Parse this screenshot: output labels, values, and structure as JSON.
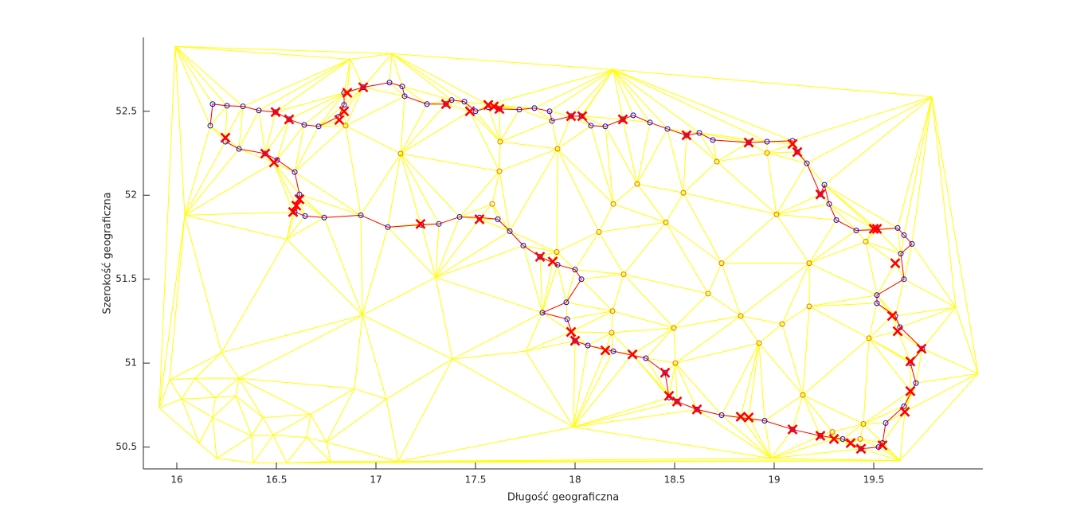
{
  "chart_data": {
    "type": "scatter",
    "xlabel": "Długość geograficzna",
    "ylabel": "Szerokość geograficzna",
    "xlim": [
      15.832,
      20.048
    ],
    "ylim": [
      50.37,
      52.94
    ],
    "xticks": [
      16,
      16.5,
      17,
      17.5,
      18,
      18.5,
      19,
      19.5
    ],
    "yticks": [
      50.5,
      51,
      51.5,
      52,
      52.5
    ],
    "triangulation": true,
    "mesh_color": "#ffff00",
    "series": [
      {
        "line_color": "#ff0000",
        "marker": "o",
        "marker_color": "#0000ff",
        "x": [
          16.168,
          16.18,
          16.252,
          16.332,
          16.412,
          16.496,
          16.564,
          16.64,
          16.712,
          16.812,
          16.84,
          16.84,
          16.936,
          17.068,
          17.132,
          17.144,
          17.256,
          17.352,
          17.38,
          17.444,
          17.5,
          17.564,
          17.62,
          17.72,
          17.796,
          17.872,
          17.884,
          17.98,
          18.032,
          18.08,
          18.152,
          18.24,
          18.292,
          18.376,
          18.464,
          18.56,
          18.624,
          18.692,
          18.872,
          18.964,
          19.092,
          19.116,
          19.164,
          19.232,
          19.252,
          19.276,
          19.312,
          19.412,
          19.516,
          19.62,
          19.652,
          19.692,
          19.636,
          19.652,
          19.516,
          19.516,
          19.608,
          19.632,
          19.744,
          19.684,
          19.712,
          19.652,
          19.56,
          19.544,
          19.524,
          19.436,
          19.344,
          19.232,
          19.092,
          18.952,
          18.736,
          18.612,
          18.512,
          18.472,
          18.452,
          18.356,
          18.192,
          18.064,
          18.0,
          17.96,
          17.836,
          17.956,
          18.032,
          18.0,
          17.912,
          17.824,
          17.74,
          17.672,
          17.612,
          17.52,
          17.42,
          17.316,
          17.228,
          17.06,
          16.924,
          16.74,
          16.644,
          16.592,
          16.616,
          16.592,
          16.504,
          16.444,
          16.312,
          16.244
        ],
        "y": [
          52.414,
          52.543,
          52.533,
          52.529,
          52.505,
          52.495,
          52.452,
          52.419,
          52.41,
          52.467,
          52.538,
          52.61,
          52.643,
          52.671,
          52.648,
          52.59,
          52.543,
          52.543,
          52.567,
          52.557,
          52.5,
          52.524,
          52.514,
          52.51,
          52.519,
          52.5,
          52.443,
          52.471,
          52.471,
          52.414,
          52.41,
          52.452,
          52.476,
          52.433,
          52.395,
          52.357,
          52.371,
          52.329,
          52.314,
          52.319,
          52.324,
          52.257,
          52.19,
          52.005,
          52.062,
          51.948,
          51.852,
          51.79,
          51.795,
          51.805,
          51.762,
          51.71,
          51.652,
          51.5,
          51.405,
          51.357,
          51.281,
          51.214,
          51.086,
          51.0,
          50.881,
          50.743,
          50.643,
          50.524,
          50.5,
          50.49,
          50.548,
          50.567,
          50.605,
          50.657,
          50.69,
          50.724,
          50.771,
          50.795,
          50.943,
          51.029,
          51.071,
          51.105,
          51.133,
          51.262,
          51.3,
          51.362,
          51.5,
          51.557,
          51.586,
          51.633,
          51.7,
          51.786,
          51.857,
          51.867,
          51.871,
          51.829,
          51.824,
          51.81,
          51.881,
          51.867,
          51.876,
          51.9,
          52.005,
          52.138,
          52.21,
          52.248,
          52.276,
          52.319
        ]
      },
      {
        "marker": "x",
        "marker_color": "#ff0000",
        "x": [
          16.496,
          16.564,
          16.816,
          16.84,
          16.856,
          16.936,
          17.352,
          17.472,
          17.564,
          17.592,
          17.62,
          17.98,
          18.036,
          18.24,
          18.56,
          18.872,
          19.092,
          19.116,
          19.232,
          19.5,
          19.516,
          19.608,
          19.592,
          19.62,
          19.74,
          19.684,
          19.684,
          19.656,
          19.544,
          19.436,
          19.384,
          19.3,
          19.232,
          19.092,
          18.872,
          18.832,
          18.612,
          18.512,
          18.472,
          18.452,
          18.288,
          18.152,
          18.0,
          17.98,
          17.888,
          17.824,
          17.52,
          17.224,
          16.616,
          16.6,
          16.584,
          16.244,
          16.444,
          16.488
        ],
        "y": [
          52.495,
          52.452,
          52.448,
          52.5,
          52.61,
          52.643,
          52.543,
          52.5,
          52.538,
          52.529,
          52.514,
          52.471,
          52.471,
          52.452,
          52.357,
          52.314,
          52.305,
          52.257,
          52.005,
          51.8,
          51.8,
          51.595,
          51.281,
          51.19,
          51.086,
          51.01,
          50.833,
          50.71,
          50.51,
          50.49,
          50.524,
          50.548,
          50.567,
          50.605,
          50.676,
          50.681,
          50.724,
          50.771,
          50.805,
          50.943,
          51.052,
          51.076,
          51.133,
          51.186,
          51.605,
          51.633,
          51.857,
          51.829,
          51.976,
          51.938,
          51.9,
          52.343,
          52.248,
          52.195
        ]
      },
      {
        "marker": "o",
        "marker_color": "#e07000",
        "x": [
          16.848,
          17.124,
          17.624,
          17.62,
          17.584,
          17.912,
          17.908,
          18.12,
          18.192,
          18.312,
          18.456,
          18.544,
          18.712,
          18.964,
          19.012,
          19.46,
          19.176,
          18.736,
          18.668,
          18.244,
          18.188,
          18.184,
          18.496,
          18.504,
          18.832,
          18.924,
          19.04,
          19.176,
          19.476,
          19.144,
          19.292,
          19.432,
          19.448
        ],
        "y": [
          52.414,
          52.248,
          52.319,
          52.143,
          51.948,
          52.276,
          51.662,
          51.781,
          51.948,
          52.067,
          51.838,
          52.014,
          52.2,
          52.252,
          51.886,
          51.724,
          51.595,
          51.595,
          51.414,
          51.529,
          51.31,
          51.181,
          51.21,
          51.0,
          51.281,
          51.119,
          51.233,
          51.338,
          51.148,
          50.81,
          50.59,
          50.548,
          50.638
        ]
      },
      {
        "marker": "none",
        "x": [
          15.992,
          19.792,
          20.024,
          15.912,
          16.04,
          15.964,
          16.2,
          16.384,
          16.552,
          16.772,
          17.112,
          17.992,
          18.984,
          19.632,
          16.224,
          16.192,
          16.18,
          16.092,
          16.312,
          16.432,
          16.672,
          16.652,
          16.752,
          16.892,
          17.052,
          16.552,
          17.3,
          17.752,
          17.384,
          16.296,
          16.024,
          16.112,
          16.376,
          16.484,
          18.192,
          17.08,
          16.872,
          19.912,
          16.932
        ],
        "y": [
          52.886,
          52.586,
          50.938,
          50.733,
          51.881,
          50.9,
          50.433,
          50.405,
          50.405,
          50.414,
          50.414,
          50.619,
          50.433,
          50.419,
          51.062,
          50.795,
          50.676,
          50.91,
          50.91,
          50.676,
          50.695,
          50.557,
          50.529,
          50.848,
          50.786,
          51.738,
          51.51,
          51.071,
          51.024,
          50.805,
          50.786,
          50.524,
          50.567,
          50.571,
          52.748,
          52.843,
          52.81,
          51.333,
          51.286
        ]
      }
    ]
  }
}
